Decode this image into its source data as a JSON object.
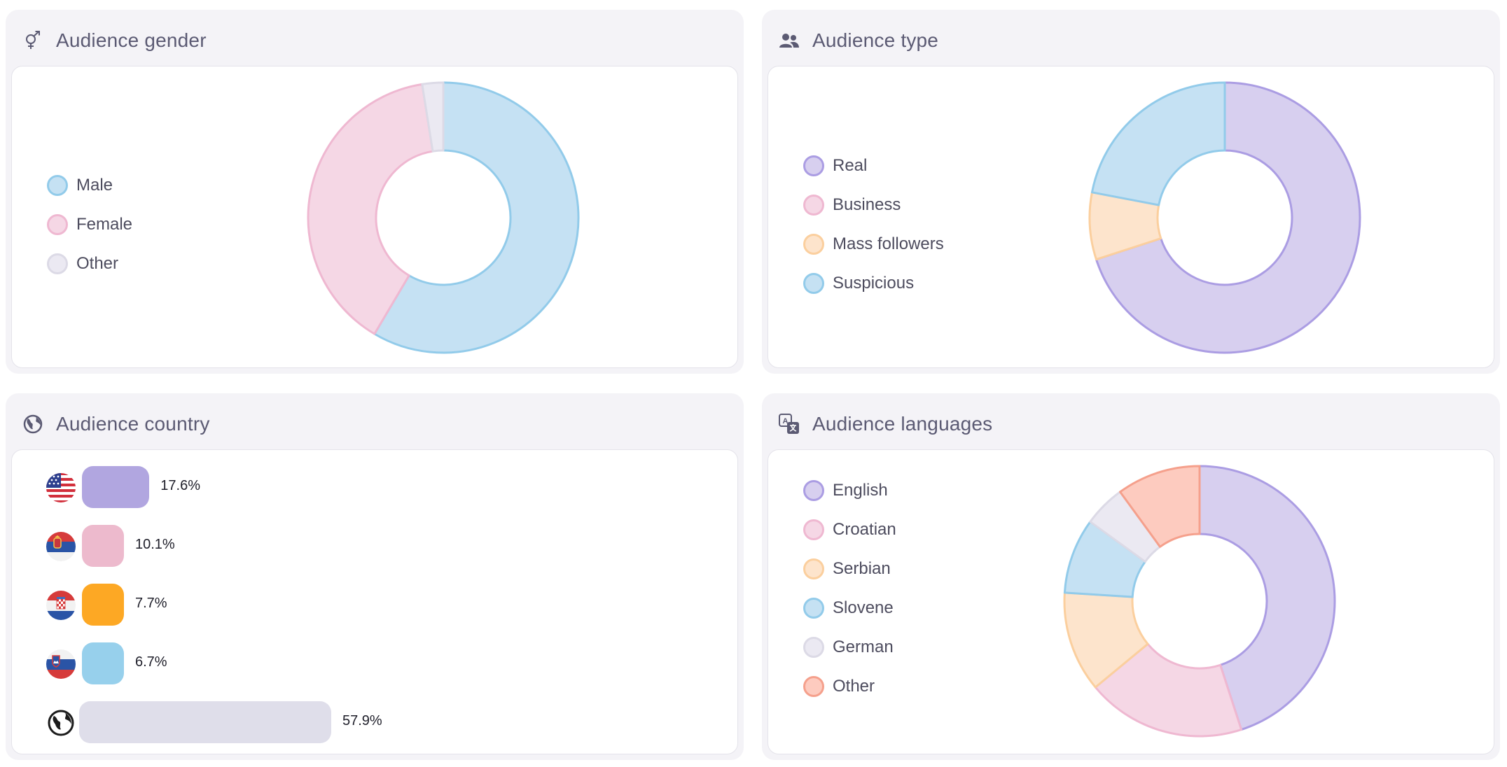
{
  "panels": {
    "gender": {
      "title": "Audience gender",
      "icon": "gender-icon",
      "chart_data": {
        "type": "pie",
        "categories": [
          "Male",
          "Female",
          "Other"
        ],
        "values": [
          58.5,
          39.0,
          2.5
        ],
        "colors": {
          "fill": [
            "#c5e1f3",
            "#f5d7e5",
            "#ebe9f2"
          ],
          "stroke": [
            "#92cbea",
            "#efb8d1",
            "#dcdae6"
          ]
        }
      }
    },
    "type": {
      "title": "Audience type",
      "icon": "people-icon",
      "chart_data": {
        "type": "pie",
        "categories": [
          "Real",
          "Business",
          "Mass followers",
          "Suspicious"
        ],
        "values": [
          70.0,
          0.0,
          8.0,
          22.0
        ],
        "colors": {
          "fill": [
            "#d7cfef",
            "#f5d7e5",
            "#fde4cc",
            "#c5e1f3"
          ],
          "stroke": [
            "#ab9de3",
            "#efb8d1",
            "#fbcf9e",
            "#92cbea"
          ]
        }
      }
    },
    "country": {
      "title": "Audience country",
      "icon": "globe-icon",
      "chart_data": {
        "type": "bar",
        "categories": [
          "United States",
          "Serbia",
          "Croatia",
          "Slovenia",
          "Other"
        ],
        "values": [
          17.6,
          10.1,
          7.7,
          6.7,
          57.9
        ],
        "labels": [
          "17.6%",
          "10.1%",
          "7.7%",
          "6.7%",
          "57.9%"
        ],
        "flags": [
          "us-flag-icon",
          "serbia-flag-icon",
          "croatia-flag-icon",
          "slovenia-flag-icon",
          "globe-icon"
        ],
        "colors": [
          "#b1a6e0",
          "#edbacd",
          "#fda824",
          "#97d0ec",
          "#dfdeea"
        ],
        "xlim": [
          0,
          100
        ]
      }
    },
    "languages": {
      "title": "Audience languages",
      "icon": "translate-icon",
      "chart_data": {
        "type": "pie",
        "categories": [
          "English",
          "Croatian",
          "Serbian",
          "Slovene",
          "German",
          "Other"
        ],
        "values": [
          45.0,
          19.0,
          12.0,
          9.0,
          5.0,
          10.0
        ],
        "colors": {
          "fill": [
            "#d7cfef",
            "#f5d7e5",
            "#fde4cc",
            "#c5e1f3",
            "#ebe9f2",
            "#fdcbbf"
          ],
          "stroke": [
            "#ab9de3",
            "#efb8d1",
            "#fbcf9e",
            "#92cbea",
            "#dcdae6",
            "#f5a08c"
          ]
        }
      }
    }
  }
}
